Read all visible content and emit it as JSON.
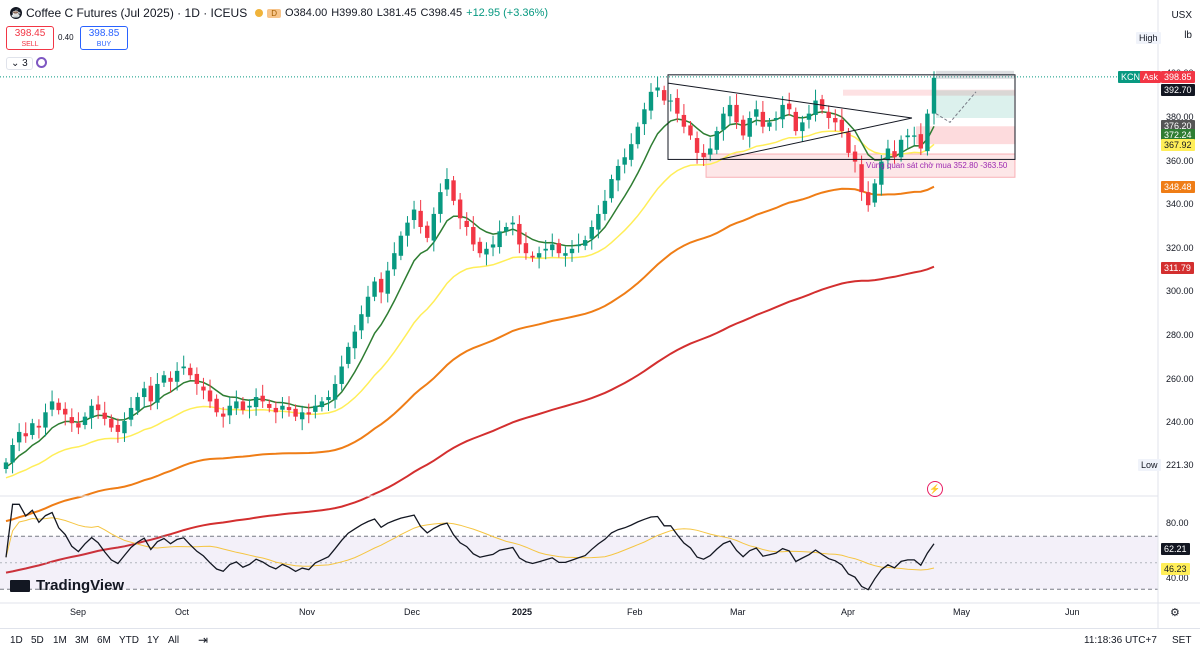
{
  "header": {
    "symbol_icon": "coffee-icon",
    "title": "Coffee C Futures (Jul 2025) · 1D · ICEUS",
    "badge": "D",
    "open": "O384.00",
    "high": "H399.80",
    "low": "L381.45",
    "close": "C398.45",
    "change": "+12.95 (+3.36%)"
  },
  "trade": {
    "sell_price": "398.45",
    "sell_label": "SELL",
    "spread": "0.40",
    "buy_price": "398.85",
    "buy_label": "BUY"
  },
  "indicators": {
    "count": "3"
  },
  "currency": {
    "code": "USX",
    "unit": "lb"
  },
  "price_axis": {
    "ticks": [
      "400.00",
      "380.00",
      "360.00",
      "340.00",
      "320.00",
      "300.00",
      "280.00",
      "260.00",
      "240.00",
      "220.00"
    ],
    "high_label": "High",
    "low_label": "Low",
    "low_value": "221.30",
    "ask_label": "Ask",
    "sym_label": "KCN",
    "ask_value": "398.85",
    "last_value": "392.70",
    "v1": "376.20",
    "v2": "372.24",
    "v3": "367.92",
    "ema_orange": "348.48",
    "ema_red": "311.79"
  },
  "rsi_axis": {
    "ticks": [
      "80.00",
      "40.00"
    ],
    "rsi_value": "62.21",
    "ma_value": "46.23"
  },
  "time_axis": {
    "labels": [
      "Sep",
      "Oct",
      "Nov",
      "Dec",
      "2025",
      "Feb",
      "Mar",
      "Apr",
      "May",
      "Jun"
    ]
  },
  "annotation": {
    "zone_text": "Vùng quan sát chờ mua 352.80 -363.50"
  },
  "branding": {
    "logo_text": "TradingView"
  },
  "bottombar": {
    "ranges": [
      "1D",
      "5D",
      "1M",
      "3M",
      "6M",
      "YTD",
      "1Y",
      "All"
    ],
    "clock": "11:18:36 UTC+7",
    "session": "SET"
  },
  "colors": {
    "up": "#089981",
    "down": "#f23645",
    "ema_dark": "#2e7d32",
    "ema_yellow": "#ffee58",
    "ema_orange": "#ef7d16",
    "ema_red": "#d32f2f",
    "rsi": "#131722",
    "rsi_ma": "#f5c542",
    "rsi_band": "#7e57c2"
  },
  "chart_data": {
    "type": "candlestick",
    "price_range": [
      221.3,
      399.8
    ],
    "range_high": 399.8,
    "range_low": 221.3,
    "last_close": 398.45,
    "months": [
      "Sep",
      "Oct",
      "Nov",
      "Dec",
      "2025",
      "Feb",
      "Mar",
      "Apr",
      "May",
      "Jun"
    ],
    "candles_close": [
      222,
      230,
      236,
      234,
      240,
      238,
      245,
      250,
      246,
      244,
      240,
      238,
      243,
      248,
      246,
      242,
      238,
      236,
      241,
      247,
      252,
      256,
      250,
      258,
      262,
      259,
      264,
      266,
      262,
      258,
      255,
      250,
      245,
      243,
      248,
      250,
      246,
      248,
      252,
      250,
      247,
      245,
      248,
      246,
      243,
      245,
      244,
      248,
      250,
      252,
      258,
      266,
      275,
      282,
      290,
      298,
      305,
      300,
      310,
      318,
      326,
      332,
      338,
      330,
      325,
      336,
      346,
      352,
      342,
      334,
      330,
      322,
      318,
      320,
      322,
      328,
      330,
      332,
      322,
      318,
      316,
      318,
      320,
      322,
      318,
      318,
      320,
      322,
      324,
      330,
      336,
      342,
      352,
      358,
      362,
      368,
      376,
      384,
      392,
      394,
      388,
      388,
      382,
      376,
      372,
      364,
      362,
      366,
      374,
      382,
      386,
      378,
      372,
      380,
      384,
      376,
      378,
      380,
      386,
      384,
      374,
      378,
      382,
      388,
      384,
      380,
      378,
      374,
      364,
      360,
      346,
      340,
      350,
      360,
      366,
      362,
      370,
      372,
      372,
      366,
      382,
      398.45
    ],
    "ema_dark_last": 376.2,
    "ema_yellow_last": 367.92,
    "ema_orange_last": 348.48,
    "ema_red_last": 311.79,
    "triangle": {
      "top": 396,
      "apex": 380,
      "bottom": 361
    },
    "buy_zone": [
      352.8,
      363.5
    ],
    "rsi_last": 62.21,
    "rsi_ma_last": 46.23,
    "rsi_levels": [
      70,
      30
    ]
  }
}
